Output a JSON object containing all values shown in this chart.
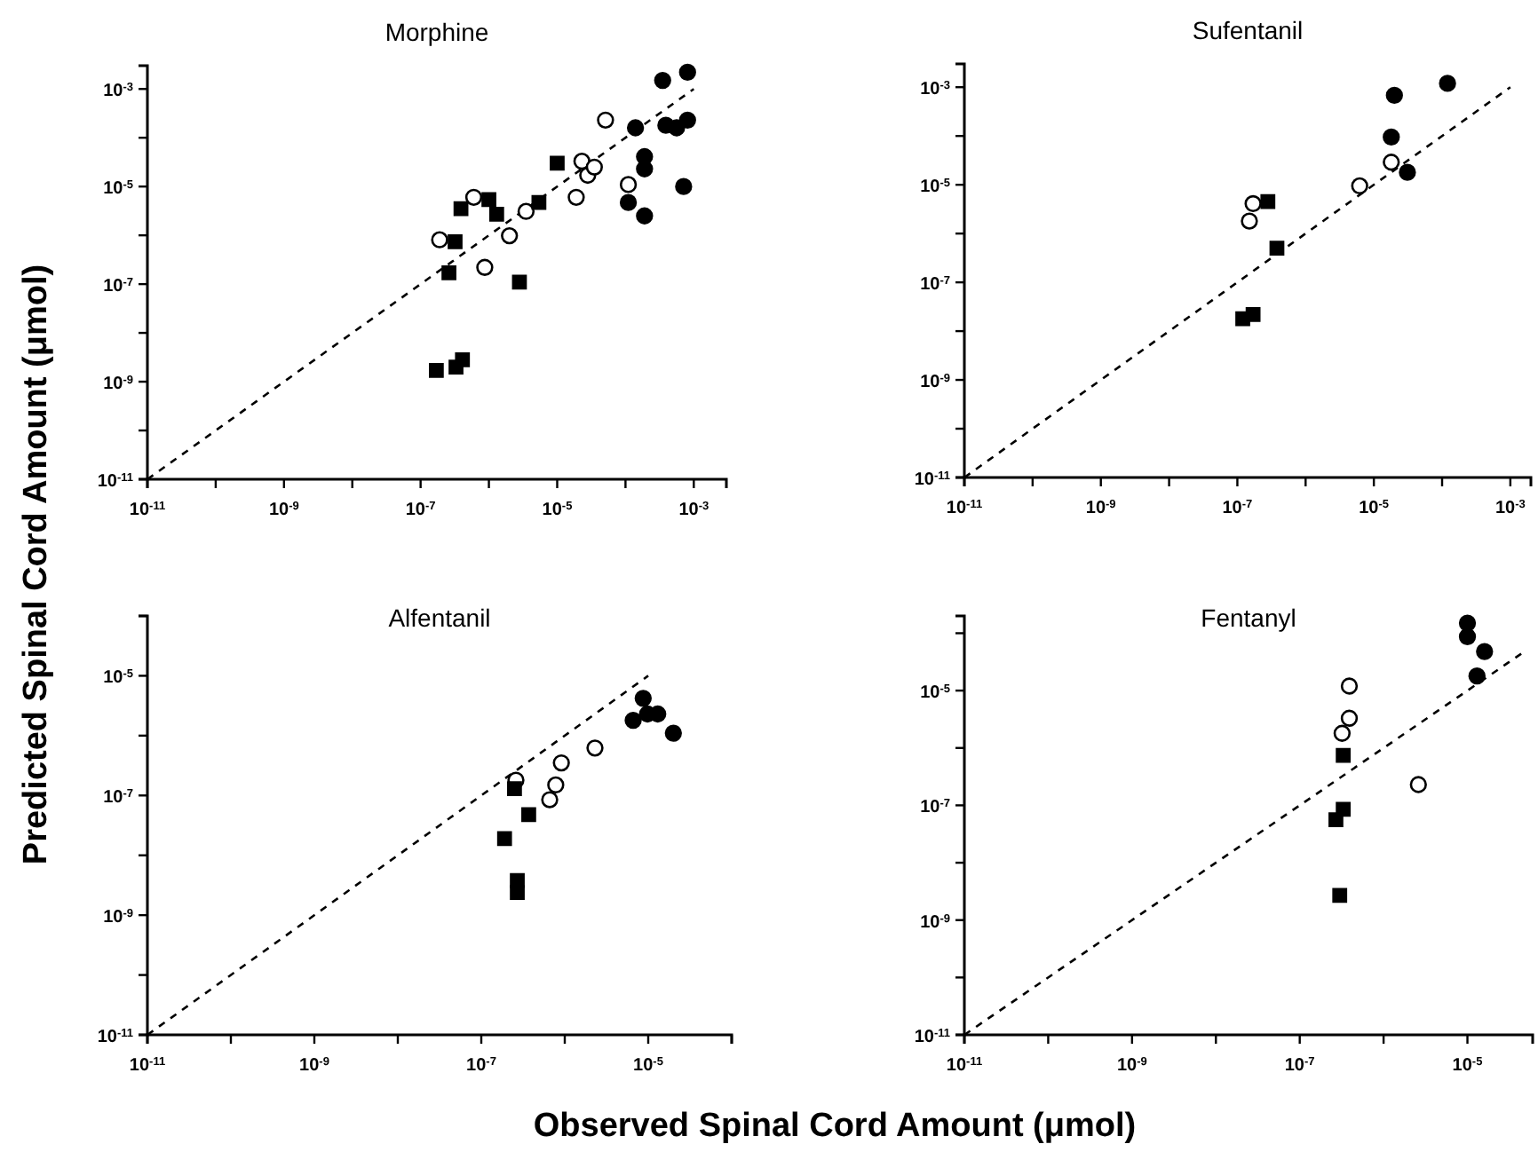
{
  "chart_data": [
    {
      "type": "scatter",
      "title": "Morphine",
      "ylabel": "Predicted Spinal Cord Amount (μmol)",
      "log": "xy",
      "xlim": [
        1e-11,
        0.003
      ],
      "ylim": [
        1e-11,
        0.003
      ],
      "xticks": [
        {
          "value": 1e-11,
          "label": "10$^{-11}$"
        },
        {
          "value": 1e-10,
          "label": null
        },
        {
          "value": 1e-09,
          "label": "10$^{-9}$"
        },
        {
          "value": 1e-08,
          "label": null
        },
        {
          "value": 1e-07,
          "label": "10$^{-7}$"
        },
        {
          "value": 1e-06,
          "label": null
        },
        {
          "value": 1e-05,
          "label": "10$^{-5}$"
        },
        {
          "value": 0.0001,
          "label": null
        },
        {
          "value": 0.001,
          "label": "10$^{-3}$"
        }
      ],
      "yticks": [
        {
          "value": 1e-11,
          "label": "10$^{-11}$"
        },
        {
          "value": 1e-10,
          "label": null
        },
        {
          "value": 1e-09,
          "label": "10$^{-9}$"
        },
        {
          "value": 1e-08,
          "label": null
        },
        {
          "value": 1e-07,
          "label": "10$^{-7}$"
        },
        {
          "value": 1e-06,
          "label": null
        },
        {
          "value": 1e-05,
          "label": "10$^{-5}$"
        },
        {
          "value": 0.0001,
          "label": null
        },
        {
          "value": 0.001,
          "label": "10$^{-3}$"
        }
      ],
      "series": [
        {
          "type": "line",
          "line_style": "dashed",
          "marker": "none",
          "color": "#000000",
          "x": [
            1e-11,
            0.001
          ],
          "values": [
            1e-11,
            0.001
          ]
        },
        {
          "marker": "square",
          "color": "#000000",
          "x": [
            1.7e-07,
            3.3e-07,
            4.1e-07,
            2.6e-07,
            3.2e-07,
            3.9e-07,
            1e-06,
            1.3e-06,
            2.8e-06,
            5.4e-06,
            1e-05
          ],
          "values": [
            1.7e-09,
            2e-09,
            2.8e-09,
            1.7e-07,
            7.4e-07,
            3.5e-06,
            5.4e-06,
            2.7e-06,
            1.1e-07,
            4.7e-06,
            3e-05
          ]
        },
        {
          "marker": "circle",
          "color": "#ffffff",
          "x": [
            1.9e-07,
            6e-07,
            8.7e-07,
            2e-06,
            3.5e-06,
            1.9e-05,
            2.3e-05,
            2.8e-05,
            3.5e-05,
            5.1e-05,
            0.00011
          ],
          "values": [
            8.1e-07,
            6e-06,
            2.2e-07,
            9.8e-07,
            3.1e-06,
            6e-06,
            3.3e-05,
            1.7e-05,
            2.5e-05,
            0.00023,
            1.1e-05
          ]
        },
        {
          "marker": "circle",
          "color": "#000000",
          "x": [
            0.00035,
            0.00081,
            0.00014,
            0.00039,
            0.00056,
            0.00081,
            0.00019,
            0.00019,
            0.00071,
            0.00011,
            0.00019
          ],
          "values": [
            0.0015,
            0.0022,
            0.00016,
            0.00018,
            0.00016,
            0.00023,
            4.1e-05,
            2.3e-05,
            1e-05,
            4.7e-06,
            2.5e-06
          ]
        }
      ]
    },
    {
      "type": "scatter",
      "title": "Sufentanil",
      "log": "xy",
      "xlim": [
        1e-11,
        0.002
      ],
      "ylim": [
        1e-11,
        0.003
      ],
      "xticks": [
        {
          "value": 1e-11,
          "label": "10$^{-11}$"
        },
        {
          "value": 1e-10,
          "label": null
        },
        {
          "value": 1e-09,
          "label": "10$^{-9}$"
        },
        {
          "value": 1e-08,
          "label": null
        },
        {
          "value": 1e-07,
          "label": "10$^{-7}$"
        },
        {
          "value": 1e-06,
          "label": null
        },
        {
          "value": 1e-05,
          "label": "10$^{-5}$"
        },
        {
          "value": 0.0001,
          "label": null
        },
        {
          "value": 0.001,
          "label": "10$^{-3}$"
        }
      ],
      "yticks": [
        {
          "value": 1e-11,
          "label": "10$^{-11}$"
        },
        {
          "value": 1e-10,
          "label": null
        },
        {
          "value": 1e-09,
          "label": "10$^{-9}$"
        },
        {
          "value": 1e-08,
          "label": null
        },
        {
          "value": 1e-07,
          "label": "10$^{-7}$"
        },
        {
          "value": 1e-06,
          "label": null
        },
        {
          "value": 1e-05,
          "label": "10$^{-5}$"
        },
        {
          "value": 0.0001,
          "label": null
        },
        {
          "value": 0.001,
          "label": "10$^{-3}$"
        }
      ],
      "series": [
        {
          "type": "line",
          "line_style": "dashed",
          "marker": "none",
          "color": "#000000",
          "x": [
            1e-11,
            0.001
          ],
          "values": [
            1e-11,
            0.001
          ]
        },
        {
          "marker": "square",
          "color": "#000000",
          "x": [
            1.2e-07,
            1.7e-07,
            2.8e-07,
            3.8e-07
          ],
          "values": [
            1.8e-08,
            2.2e-08,
            4.5e-06,
            5e-07
          ]
        },
        {
          "marker": "circle",
          "color": "#ffffff",
          "x": [
            1.5e-07,
            1.7e-07,
            6.2e-06,
            1.8e-05
          ],
          "values": [
            1.8e-06,
            4.1e-06,
            9.5e-06,
            2.9e-05
          ]
        },
        {
          "marker": "circle",
          "color": "#000000",
          "x": [
            2e-05,
            1.8e-05,
            3.1e-05,
            0.00012
          ],
          "values": [
            0.00068,
            9.5e-05,
            1.8e-05,
            0.0012
          ]
        }
      ]
    },
    {
      "type": "scatter",
      "title": "Alfentanil",
      "xlabel": "Observed Spinal Cord Amount (μmol)",
      "log": "xy",
      "xlim": [
        1e-11,
        0.0001
      ],
      "ylim": [
        1e-11,
        0.0001
      ],
      "xticks": [
        {
          "value": 1e-11,
          "label": "10$^{-11}$"
        },
        {
          "value": 1e-10,
          "label": null
        },
        {
          "value": 1e-09,
          "label": "10$^{-9}$"
        },
        {
          "value": 1e-08,
          "label": null
        },
        {
          "value": 1e-07,
          "label": "10$^{-7}$"
        },
        {
          "value": 1e-06,
          "label": null
        },
        {
          "value": 1e-05,
          "label": "10$^{-5}$"
        },
        {
          "value": 0.0001,
          "label": null
        }
      ],
      "yticks": [
        {
          "value": 1e-11,
          "label": "10$^{-11}$"
        },
        {
          "value": 1e-10,
          "label": null
        },
        {
          "value": 1e-09,
          "label": "10$^{-9}$"
        },
        {
          "value": 1e-08,
          "label": null
        },
        {
          "value": 1e-07,
          "label": "10$^{-7}$"
        },
        {
          "value": 1e-06,
          "label": null
        },
        {
          "value": 1e-05,
          "label": "10$^{-5}$"
        },
        {
          "value": 0.0001,
          "label": null
        }
      ],
      "series": [
        {
          "type": "line",
          "line_style": "dashed",
          "marker": "none",
          "color": "#000000",
          "x": [
            1e-11,
            1e-05
          ],
          "values": [
            1e-11,
            1e-05
          ]
        },
        {
          "marker": "square",
          "color": "#000000",
          "x": [
            2.5e-07,
            3.7e-07,
            1.9e-07,
            2.7e-07,
            2.7e-07
          ],
          "values": [
            1.3e-07,
            4.8e-08,
            1.9e-08,
            3.8e-09,
            2.4e-09
          ]
        },
        {
          "marker": "circle",
          "color": "#ffffff",
          "x": [
            2.6e-07,
            7.8e-07,
            6.6e-07,
            9.1e-07,
            2.3e-06
          ],
          "values": [
            1.8e-07,
            1.5e-07,
            8.5e-08,
            3.5e-07,
            6.2e-07
          ]
        },
        {
          "marker": "circle",
          "color": "#000000",
          "x": [
            8.7e-06,
            6.6e-06,
            9.8e-06,
            1.3e-05,
            2e-05
          ],
          "values": [
            4.2e-06,
            1.8e-06,
            2.3e-06,
            2.3e-06,
            1.1e-06
          ]
        }
      ]
    },
    {
      "type": "scatter",
      "title": "Fentanyl",
      "log": "xy",
      "xlim": [
        1e-11,
        6e-05
      ],
      "ylim": [
        1e-11,
        0.0002
      ],
      "xticks": [
        {
          "value": 1e-11,
          "label": "10$^{-11}$"
        },
        {
          "value": 1e-10,
          "label": null
        },
        {
          "value": 1e-09,
          "label": "10$^{-9}$"
        },
        {
          "value": 1e-08,
          "label": null
        },
        {
          "value": 1e-07,
          "label": "10$^{-7}$"
        },
        {
          "value": 1e-06,
          "label": null
        },
        {
          "value": 1e-05,
          "label": "10$^{-5}$"
        }
      ],
      "yticks": [
        {
          "value": 1e-11,
          "label": "10$^{-11}$"
        },
        {
          "value": 1e-10,
          "label": null
        },
        {
          "value": 1e-09,
          "label": "10$^{-9}$"
        },
        {
          "value": 1e-08,
          "label": null
        },
        {
          "value": 1e-07,
          "label": "10$^{-7}$"
        },
        {
          "value": 1e-06,
          "label": null
        },
        {
          "value": 1e-05,
          "label": "10$^{-5}$"
        },
        {
          "value": 0.0001,
          "label": null
        }
      ],
      "series": [
        {
          "type": "line",
          "line_style": "dashed",
          "marker": "none",
          "color": "#000000",
          "x": [
            1e-11,
            5e-05
          ],
          "values": [
            1e-11,
            5e-05
          ]
        },
        {
          "marker": "square",
          "color": "#000000",
          "x": [
            3.3e-07,
            3.3e-07,
            2.7e-07,
            3e-07
          ],
          "values": [
            7.4e-07,
            8.5e-08,
            5.6e-08,
            2.7e-09
          ]
        },
        {
          "marker": "circle",
          "color": "#ffffff",
          "x": [
            3.9e-07,
            3.9e-07,
            3.2e-07,
            2.6e-06
          ],
          "values": [
            1.2e-05,
            3.3e-06,
            1.8e-06,
            2.3e-07
          ]
        },
        {
          "marker": "circle",
          "color": "#000000",
          "x": [
            1e-05,
            1e-05,
            1.6e-05,
            1.3e-05
          ],
          "values": [
            0.00015,
            8.7e-05,
            4.8e-05,
            1.8e-05
          ]
        }
      ]
    }
  ]
}
